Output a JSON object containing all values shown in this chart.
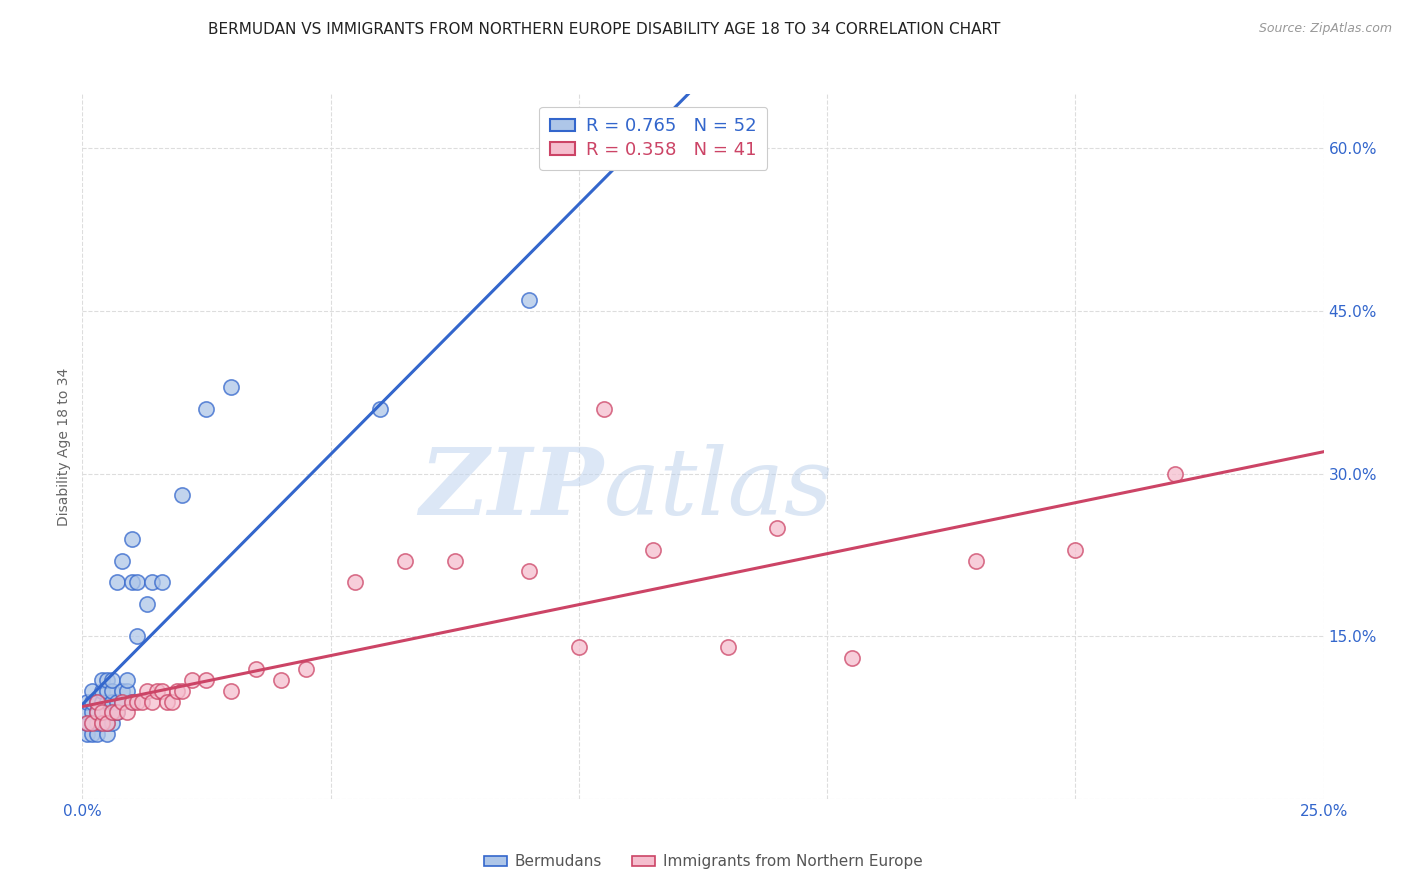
{
  "title": "BERMUDAN VS IMMIGRANTS FROM NORTHERN EUROPE DISABILITY AGE 18 TO 34 CORRELATION CHART",
  "source": "Source: ZipAtlas.com",
  "ylabel": "Disability Age 18 to 34",
  "xlim": [
    0.0,
    0.25
  ],
  "ylim": [
    0.0,
    0.65
  ],
  "x_ticks": [
    0.0,
    0.05,
    0.1,
    0.15,
    0.2,
    0.25
  ],
  "y_ticks_right": [
    0.0,
    0.15,
    0.3,
    0.45,
    0.6
  ],
  "y_tick_labels_right": [
    "",
    "15.0%",
    "30.0%",
    "45.0%",
    "60.0%"
  ],
  "blue_R": 0.765,
  "blue_N": 52,
  "pink_R": 0.358,
  "pink_N": 41,
  "blue_color": "#aec6e8",
  "pink_color": "#f5bece",
  "blue_line_color": "#3366cc",
  "pink_line_color": "#cc4466",
  "legend_label_blue": "Bermudans",
  "legend_label_pink": "Immigrants from Northern Europe",
  "watermark_zip": "ZIP",
  "watermark_atlas": "atlas",
  "blue_scatter_x": [
    0.001,
    0.001,
    0.001,
    0.001,
    0.001,
    0.002,
    0.002,
    0.002,
    0.002,
    0.002,
    0.003,
    0.003,
    0.003,
    0.003,
    0.004,
    0.004,
    0.004,
    0.004,
    0.004,
    0.005,
    0.005,
    0.005,
    0.005,
    0.005,
    0.005,
    0.006,
    0.006,
    0.006,
    0.006,
    0.006,
    0.007,
    0.007,
    0.007,
    0.008,
    0.008,
    0.008,
    0.009,
    0.009,
    0.01,
    0.01,
    0.01,
    0.011,
    0.011,
    0.013,
    0.014,
    0.016,
    0.02,
    0.025,
    0.03,
    0.06,
    0.09,
    0.125
  ],
  "blue_scatter_y": [
    0.06,
    0.07,
    0.07,
    0.08,
    0.09,
    0.06,
    0.07,
    0.08,
    0.09,
    0.1,
    0.06,
    0.07,
    0.08,
    0.09,
    0.07,
    0.08,
    0.09,
    0.1,
    0.11,
    0.06,
    0.07,
    0.08,
    0.09,
    0.1,
    0.11,
    0.07,
    0.08,
    0.09,
    0.1,
    0.11,
    0.08,
    0.09,
    0.2,
    0.09,
    0.1,
    0.22,
    0.1,
    0.11,
    0.09,
    0.2,
    0.24,
    0.15,
    0.2,
    0.18,
    0.2,
    0.2,
    0.28,
    0.36,
    0.38,
    0.36,
    0.46,
    0.6
  ],
  "pink_scatter_x": [
    0.001,
    0.002,
    0.003,
    0.003,
    0.004,
    0.004,
    0.005,
    0.006,
    0.007,
    0.008,
    0.009,
    0.01,
    0.011,
    0.012,
    0.013,
    0.014,
    0.015,
    0.016,
    0.017,
    0.018,
    0.019,
    0.02,
    0.022,
    0.025,
    0.03,
    0.035,
    0.04,
    0.045,
    0.055,
    0.065,
    0.075,
    0.09,
    0.1,
    0.105,
    0.115,
    0.13,
    0.14,
    0.155,
    0.18,
    0.2,
    0.22
  ],
  "pink_scatter_y": [
    0.07,
    0.07,
    0.08,
    0.09,
    0.07,
    0.08,
    0.07,
    0.08,
    0.08,
    0.09,
    0.08,
    0.09,
    0.09,
    0.09,
    0.1,
    0.09,
    0.1,
    0.1,
    0.09,
    0.09,
    0.1,
    0.1,
    0.11,
    0.11,
    0.1,
    0.12,
    0.11,
    0.12,
    0.2,
    0.22,
    0.22,
    0.21,
    0.14,
    0.36,
    0.23,
    0.14,
    0.25,
    0.13,
    0.22,
    0.23,
    0.3
  ],
  "grid_color": "#dddddd",
  "background_color": "#ffffff",
  "title_fontsize": 11,
  "axis_label_fontsize": 10,
  "tick_fontsize": 11,
  "marker_size": 120,
  "marker_linewidth": 1.2,
  "line_width": 2.2
}
